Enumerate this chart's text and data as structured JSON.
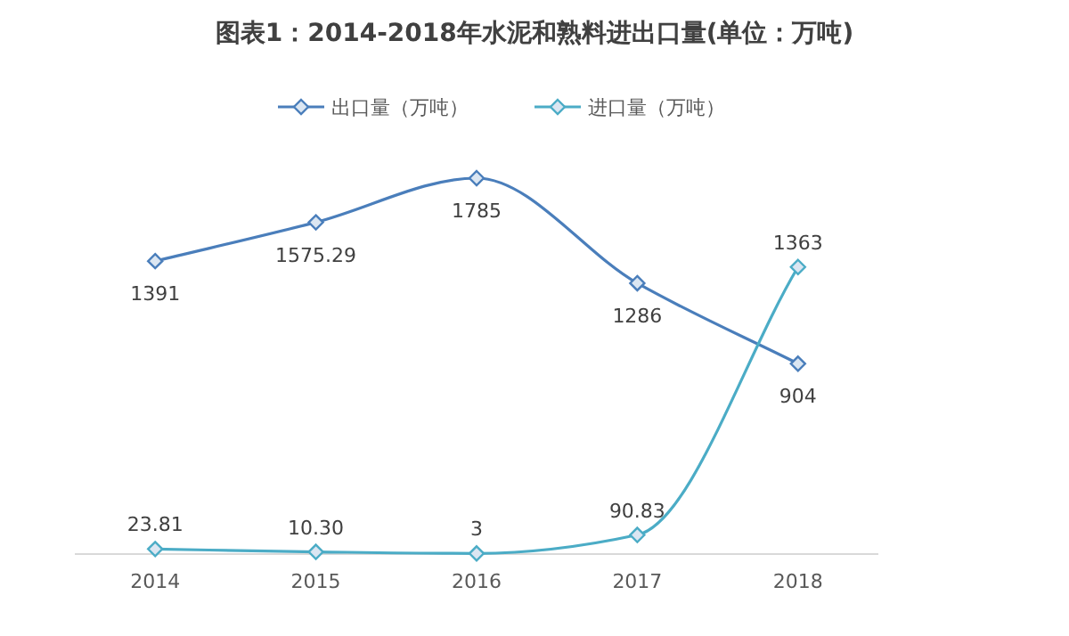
{
  "chart_data": {
    "type": "line",
    "title": "图表1：2014-2018年水泥和熟料进出口量(单位：万吨)",
    "categories": [
      "2014",
      "2015",
      "2016",
      "2017",
      "2018"
    ],
    "series": [
      {
        "name": "出口量（万吨）",
        "color": "#4a7ebb",
        "values": [
          1391,
          1575.29,
          1785,
          1286,
          904
        ],
        "value_labels": [
          "1391",
          "1575.29",
          "1785",
          "1286",
          "904"
        ]
      },
      {
        "name": "进口量（万吨）",
        "color": "#4bacc6",
        "values": [
          23.81,
          10.3,
          3,
          90.83,
          1363
        ],
        "value_labels": [
          "23.81",
          "10.30",
          "3",
          "90.83",
          "1363"
        ]
      }
    ],
    "legend": "top",
    "marker": "diamond",
    "grid": false
  }
}
